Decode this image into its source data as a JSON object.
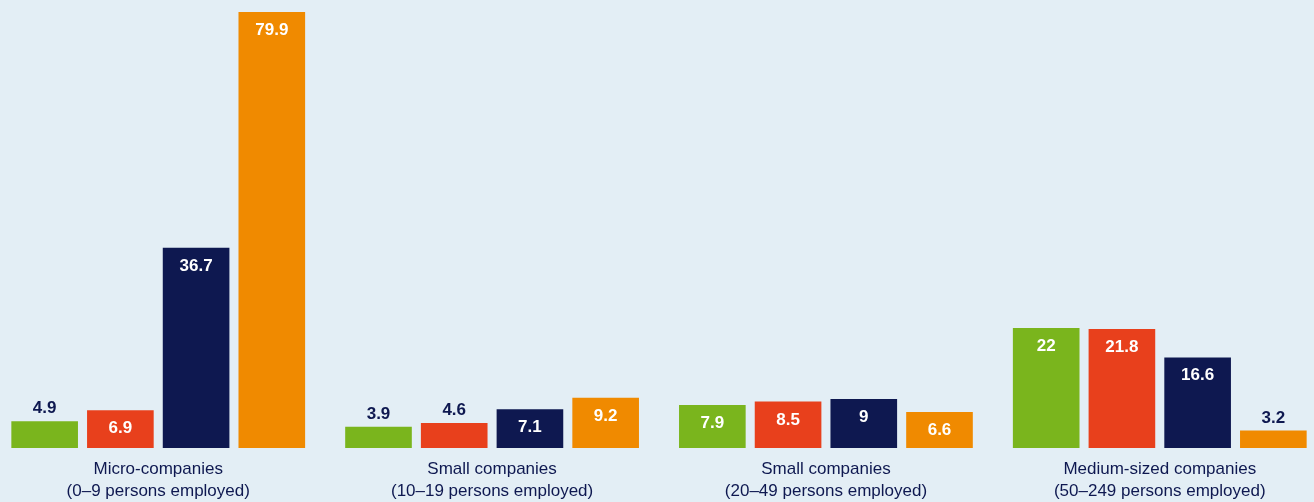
{
  "chart_data": {
    "type": "bar",
    "categories": [
      "Micro-companies\n(0–9 persons employed)",
      "Small companies\n(10–19 persons employed)",
      "Small companies\n(20–49 persons employed)",
      "Medium-sized companies\n(50–249 persons employed)"
    ],
    "series": [
      {
        "color": "#7ab51d",
        "values": [
          4.9,
          3.9,
          7.9,
          22
        ]
      },
      {
        "color": "#e8401c",
        "values": [
          6.9,
          4.6,
          8.5,
          21.8
        ]
      },
      {
        "color": "#0e1850",
        "values": [
          36.7,
          7.1,
          9,
          16.6
        ]
      },
      {
        "color": "#f08a00",
        "values": [
          79.9,
          9.2,
          6.6,
          3.2
        ]
      }
    ],
    "data_labels": true,
    "legend": false
  }
}
